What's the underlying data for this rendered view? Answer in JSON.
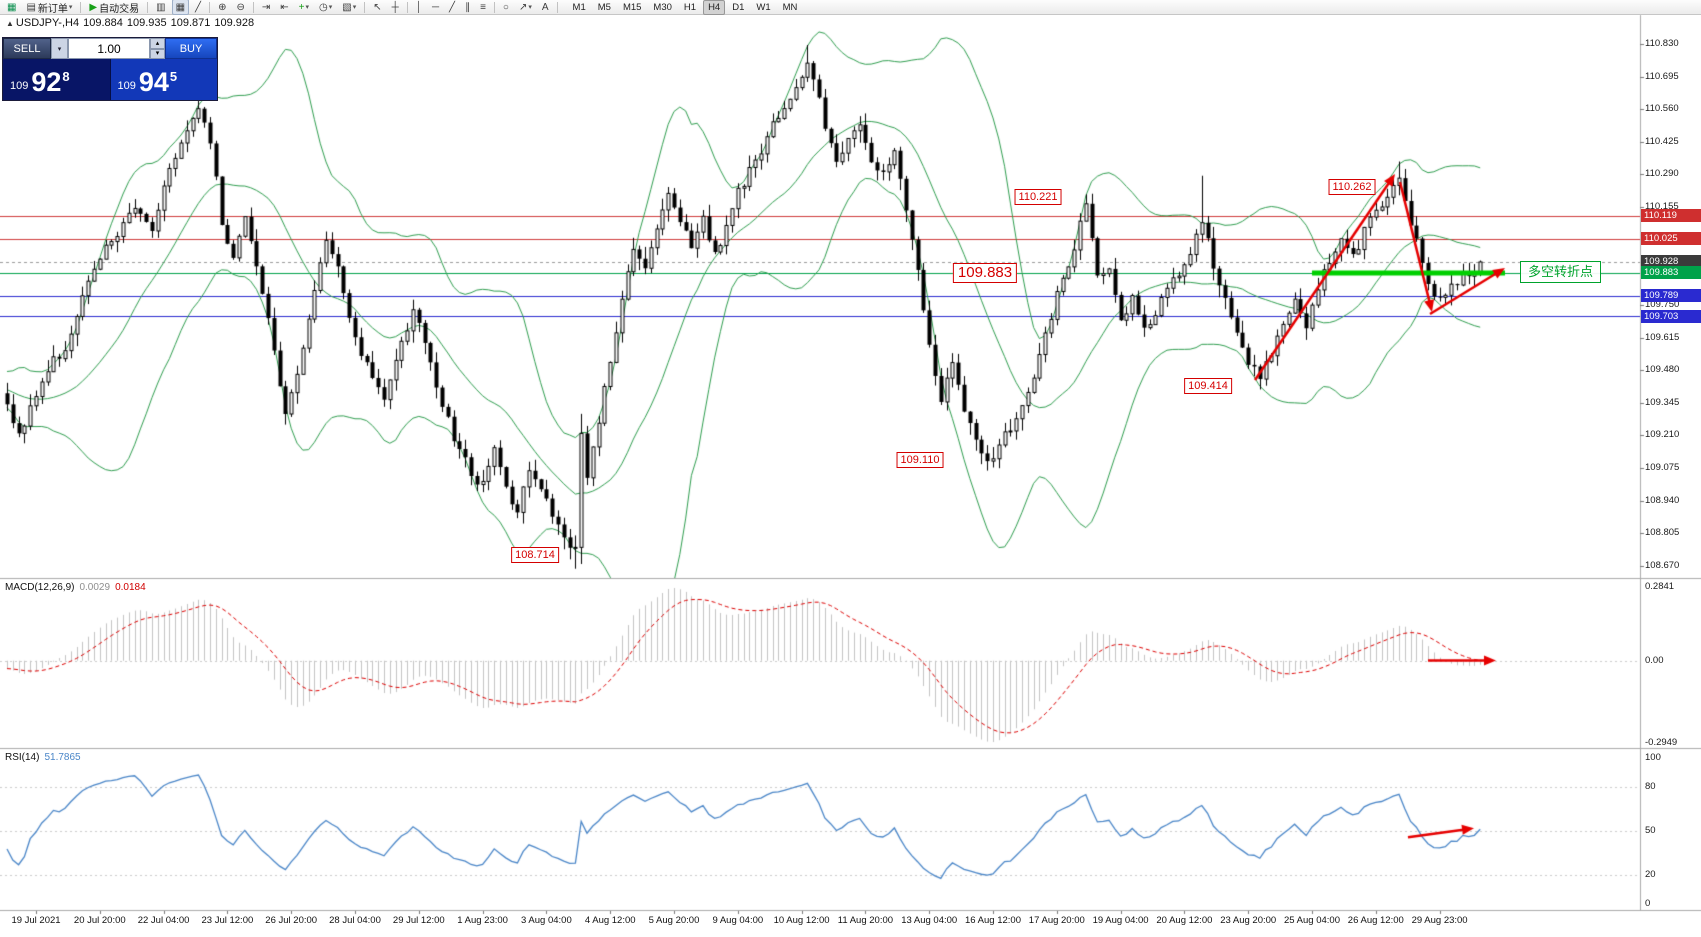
{
  "toolbar": {
    "items": [
      {
        "t": "ico",
        "name": "app-chart-button",
        "icon": "candlestick-window-icon",
        "glyph": "▦",
        "color": "#0a8f4e"
      },
      {
        "t": "btn",
        "name": "new-order-button",
        "icon": "new-order-icon",
        "glyph": "▤",
        "label": "新订单",
        "caret": true
      },
      {
        "t": "sep"
      },
      {
        "t": "btn",
        "name": "autotrading-button",
        "icon": "autotrading-play-icon",
        "glyph": "▶",
        "color": "#18a018",
        "label": "自动交易"
      },
      {
        "t": "sep"
      },
      {
        "t": "ico",
        "name": "bar-chart-button",
        "icon": "bar-chart-icon",
        "glyph": "▥"
      },
      {
        "t": "ico",
        "name": "candlestick-chart-button",
        "icon": "candlestick-chart-icon",
        "glyph": "▦",
        "active": true
      },
      {
        "t": "ico",
        "name": "line-chart-button",
        "icon": "line-chart-icon",
        "glyph": "╱"
      },
      {
        "t": "sep"
      },
      {
        "t": "ico",
        "name": "zoom-in-button",
        "icon": "zoom-in-icon",
        "glyph": "⊕"
      },
      {
        "t": "ico",
        "name": "zoom-out-button",
        "icon": "zoom-out-icon",
        "glyph": "⊖"
      },
      {
        "t": "sep"
      },
      {
        "t": "ico",
        "name": "auto-scroll-button",
        "icon": "auto-scroll-icon",
        "glyph": "⇥"
      },
      {
        "t": "ico",
        "name": "chart-shift-button",
        "icon": "chart-shift-icon",
        "glyph": "⇤"
      },
      {
        "t": "ico",
        "name": "indicators-button",
        "icon": "indicators-plus-icon",
        "glyph": "+",
        "color": "#18a018",
        "caret": true
      },
      {
        "t": "ico",
        "name": "periods-button",
        "icon": "clock-icon",
        "glyph": "◷",
        "caret": true
      },
      {
        "t": "ico",
        "name": "templates-button",
        "icon": "template-icon",
        "glyph": "▧",
        "caret": true
      },
      {
        "t": "sep"
      },
      {
        "t": "ico",
        "name": "cursor-button",
        "icon": "cursor-icon",
        "glyph": "↖"
      },
      {
        "t": "ico",
        "name": "crosshair-button",
        "icon": "crosshair-icon",
        "glyph": "┼"
      },
      {
        "t": "sep"
      },
      {
        "t": "ico",
        "name": "vertical-line-button",
        "icon": "vertical-line-icon",
        "glyph": "│"
      },
      {
        "t": "ico",
        "name": "horizontal-line-button",
        "icon": "horizontal-line-icon",
        "glyph": "─"
      },
      {
        "t": "ico",
        "name": "trendline-button",
        "icon": "trendline-icon",
        "glyph": "╱"
      },
      {
        "t": "ico",
        "name": "channel-button",
        "icon": "channel-icon",
        "glyph": "∥"
      },
      {
        "t": "ico",
        "name": "fibonacci-button",
        "icon": "fibonacci-icon",
        "glyph": "≡"
      },
      {
        "t": "sep"
      },
      {
        "t": "ico",
        "name": "shapes-button",
        "icon": "ellipse-icon",
        "glyph": "○"
      },
      {
        "t": "ico",
        "name": "arrows-button",
        "icon": "arrow-marker-icon",
        "glyph": "↗",
        "caret": true
      },
      {
        "t": "ico",
        "name": "text-label-button",
        "icon": "text-icon",
        "glyph": "A"
      },
      {
        "t": "sep"
      }
    ],
    "timeframes": [
      "M1",
      "M5",
      "M15",
      "M30",
      "H1",
      "H4",
      "D1",
      "W1",
      "MN"
    ],
    "active_timeframe": "H4"
  },
  "chart_header": {
    "symbol": "USDJPY-,H4",
    "open": "109.884",
    "high": "109.935",
    "low": "109.871",
    "close": "109.928"
  },
  "order_panel": {
    "sell_label": "SELL",
    "buy_label": "BUY",
    "volume": "1.00",
    "bid_small": "109",
    "bid_big": "92",
    "bid_sup": "8",
    "ask_small": "109",
    "ask_big": "94",
    "ask_sup": "5"
  },
  "price_axis": {
    "ticks": [
      "110.830",
      "110.695",
      "110.560",
      "110.425",
      "110.290",
      "110.155",
      "109.750",
      "109.615",
      "109.480",
      "109.345",
      "109.210",
      "109.075",
      "108.940",
      "108.805",
      "108.670"
    ],
    "tags": [
      {
        "text": "110.119",
        "price": 110.119,
        "color": "#cf2f2f"
      },
      {
        "text": "110.025",
        "price": 110.025,
        "color": "#cf2f2f"
      },
      {
        "text": "109.928",
        "price": 109.928,
        "color": "#3b3b3b"
      },
      {
        "text": "109.883",
        "price": 109.883,
        "color": "#00a24a"
      },
      {
        "text": "109.789",
        "price": 109.789,
        "color": "#2a2ad0"
      },
      {
        "text": "109.703",
        "price": 109.703,
        "color": "#2a2ad0"
      }
    ]
  },
  "levels": [
    {
      "price": 110.119,
      "color": "#cf3a3a",
      "style": "solid"
    },
    {
      "price": 110.025,
      "color": "#cf3a3a",
      "style": "solid"
    },
    {
      "price": 109.928,
      "color": "#9a9a9a",
      "style": "dash",
      "role": "current-bid"
    },
    {
      "price": 109.883,
      "color": "#00a24a",
      "style": "solid"
    },
    {
      "price": 109.789,
      "color": "#2a2ad0",
      "style": "solid"
    },
    {
      "price": 109.703,
      "color": "#2a2ad0",
      "style": "solid"
    }
  ],
  "annotations": {
    "price_labels": [
      {
        "text": "110.221"
      },
      {
        "text": "110.262"
      },
      {
        "text": "109.883",
        "emph": true
      },
      {
        "text": "109.414"
      },
      {
        "text": "109.110"
      },
      {
        "text": "108.714"
      }
    ],
    "turning_point_label": "多空转折点"
  },
  "macd": {
    "title": "MACD(12,26,9)",
    "value_main": "0.0029",
    "value_signal": "0.0184",
    "scale_top": "0.2841",
    "scale_zero": "0.00",
    "scale_bottom": "-0.2949"
  },
  "rsi": {
    "title": "RSI(14)",
    "value": "51.7865",
    "scale": [
      "100",
      "80",
      "50",
      "20",
      "0"
    ],
    "levels": [
      80,
      50,
      20
    ]
  },
  "time_axis": {
    "labels": [
      "19 Jul 2021",
      "20 Jul 20:00",
      "22 Jul 04:00",
      "23 Jul 12:00",
      "26 Jul 20:00",
      "28 Jul 04:00",
      "29 Jul 12:00",
      "1 Aug 23:00",
      "3 Aug 04:00",
      "4 Aug 12:00",
      "5 Aug 20:00",
      "9 Aug 04:00",
      "10 Aug 12:00",
      "11 Aug 20:00",
      "13 Aug 04:00",
      "16 Aug 12:00",
      "17 Aug 20:00",
      "19 Aug 04:00",
      "20 Aug 12:00",
      "23 Aug 20:00",
      "25 Aug 04:00",
      "26 Aug 12:00",
      "29 Aug 23:00"
    ]
  },
  "chart_data": {
    "type": "candlestick",
    "symbol": "USDJPY-",
    "timeframe": "H4",
    "last_ohlc": {
      "open": 109.884,
      "high": 109.935,
      "low": 109.871,
      "close": 109.928
    },
    "indicators": [
      "Bollinger Bands",
      "MACD(12,26,9)",
      "RSI(14)"
    ],
    "key_swing_points": [
      110.221,
      110.262,
      109.883,
      109.414,
      109.11,
      108.714
    ],
    "price_anchors": [
      [
        0,
        109.35
      ],
      [
        2,
        109.2
      ],
      [
        4,
        109.32
      ],
      [
        6,
        109.45
      ],
      [
        10,
        109.58
      ],
      [
        14,
        109.85
      ],
      [
        18,
        110.02
      ],
      [
        22,
        110.15
      ],
      [
        25,
        110.05
      ],
      [
        28,
        110.32
      ],
      [
        31,
        110.48
      ],
      [
        33,
        110.55
      ],
      [
        35,
        110.42
      ],
      [
        37,
        110.1
      ],
      [
        39,
        109.95
      ],
      [
        41,
        110.12
      ],
      [
        44,
        109.8
      ],
      [
        46,
        109.55
      ],
      [
        48,
        109.3
      ],
      [
        50,
        109.45
      ],
      [
        53,
        109.82
      ],
      [
        55,
        110.02
      ],
      [
        57,
        109.92
      ],
      [
        59,
        109.68
      ],
      [
        62,
        109.5
      ],
      [
        65,
        109.35
      ],
      [
        68,
        109.58
      ],
      [
        70,
        109.75
      ],
      [
        72,
        109.6
      ],
      [
        74,
        109.42
      ],
      [
        77,
        109.2
      ],
      [
        80,
        109.05
      ],
      [
        82,
        109.0
      ],
      [
        84,
        109.18
      ],
      [
        86,
        108.98
      ],
      [
        88,
        108.9
      ],
      [
        90,
        109.08
      ],
      [
        92,
        108.98
      ],
      [
        95,
        108.85
      ],
      [
        97,
        108.76
      ],
      [
        98,
        108.74
      ],
      [
        99,
        109.2
      ],
      [
        100,
        109.05
      ],
      [
        102,
        109.28
      ],
      [
        104,
        109.52
      ],
      [
        106,
        109.78
      ],
      [
        108,
        110.0
      ],
      [
        110,
        109.88
      ],
      [
        112,
        110.08
      ],
      [
        114,
        110.2
      ],
      [
        116,
        110.1
      ],
      [
        118,
        110.0
      ],
      [
        120,
        110.12
      ],
      [
        122,
        109.95
      ],
      [
        124,
        110.08
      ],
      [
        126,
        110.22
      ],
      [
        128,
        110.3
      ],
      [
        130,
        110.38
      ],
      [
        132,
        110.5
      ],
      [
        134,
        110.58
      ],
      [
        136,
        110.66
      ],
      [
        138,
        110.76
      ],
      [
        139,
        110.7
      ],
      [
        141,
        110.48
      ],
      [
        143,
        110.36
      ],
      [
        145,
        110.44
      ],
      [
        147,
        110.5
      ],
      [
        149,
        110.35
      ],
      [
        151,
        110.28
      ],
      [
        153,
        110.4
      ],
      [
        155,
        110.15
      ],
      [
        157,
        109.88
      ],
      [
        159,
        109.58
      ],
      [
        161,
        109.35
      ],
      [
        163,
        109.5
      ],
      [
        165,
        109.32
      ],
      [
        167,
        109.2
      ],
      [
        169,
        109.1
      ],
      [
        171,
        109.16
      ],
      [
        173,
        109.25
      ],
      [
        175,
        109.32
      ],
      [
        177,
        109.45
      ],
      [
        179,
        109.62
      ],
      [
        181,
        109.8
      ],
      [
        183,
        109.92
      ],
      [
        185,
        110.08
      ],
      [
        186,
        110.16
      ],
      [
        188,
        109.85
      ],
      [
        190,
        109.9
      ],
      [
        192,
        109.68
      ],
      [
        194,
        109.78
      ],
      [
        196,
        109.65
      ],
      [
        198,
        109.72
      ],
      [
        200,
        109.8
      ],
      [
        202,
        109.88
      ],
      [
        204,
        109.98
      ],
      [
        206,
        110.1
      ],
      [
        208,
        109.92
      ],
      [
        210,
        109.78
      ],
      [
        212,
        109.65
      ],
      [
        214,
        109.52
      ],
      [
        216,
        109.44
      ],
      [
        218,
        109.56
      ],
      [
        220,
        109.68
      ],
      [
        222,
        109.78
      ],
      [
        224,
        109.64
      ],
      [
        226,
        109.82
      ],
      [
        228,
        109.94
      ],
      [
        230,
        110.02
      ],
      [
        232,
        109.94
      ],
      [
        234,
        110.06
      ],
      [
        236,
        110.14
      ],
      [
        238,
        110.2
      ],
      [
        240,
        110.26
      ],
      [
        241,
        110.18
      ],
      [
        243,
        110.02
      ],
      [
        245,
        109.85
      ],
      [
        247,
        109.76
      ],
      [
        249,
        109.82
      ],
      [
        251,
        109.87
      ],
      [
        253,
        109.9
      ],
      [
        254,
        109.93
      ]
    ]
  }
}
